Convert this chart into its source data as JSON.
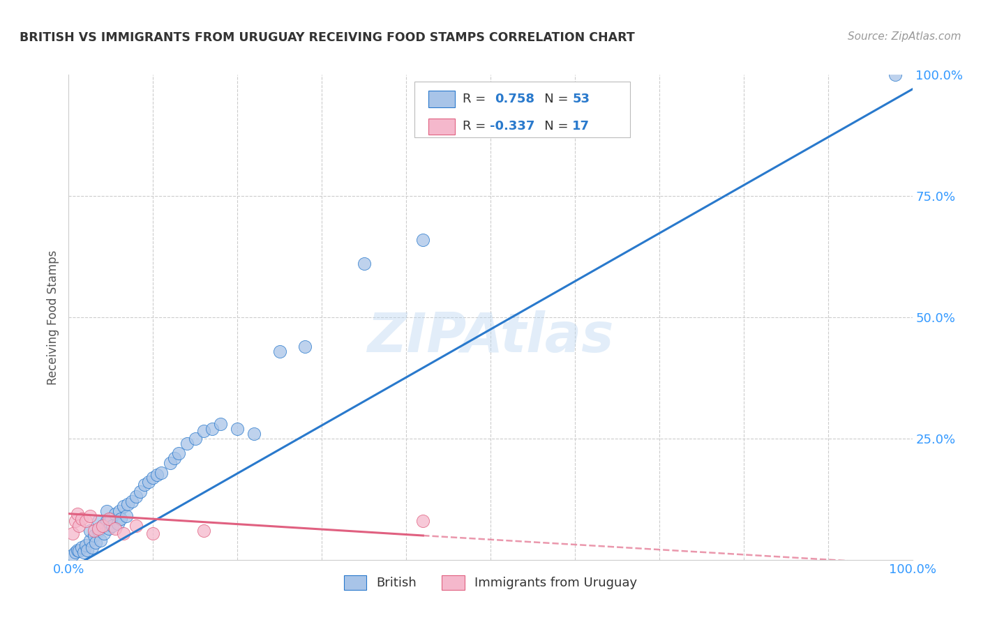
{
  "title": "BRITISH VS IMMIGRANTS FROM URUGUAY RECEIVING FOOD STAMPS CORRELATION CHART",
  "source": "Source: ZipAtlas.com",
  "ylabel": "Receiving Food Stamps",
  "watermark": "ZIPAtlas",
  "blue_R": 0.758,
  "blue_N": 53,
  "pink_R": -0.337,
  "pink_N": 17,
  "blue_color": "#a8c4e8",
  "pink_color": "#f5b8cc",
  "blue_line_color": "#2979cc",
  "pink_line_color": "#e06080",
  "axis_tick_color": "#3399ff",
  "title_color": "#333333",
  "background_color": "#ffffff",
  "grid_color": "#cccccc",
  "xlim": [
    0.0,
    1.0
  ],
  "ylim": [
    0.0,
    1.0
  ],
  "blue_scatter_x": [
    0.005,
    0.008,
    0.01,
    0.012,
    0.015,
    0.018,
    0.02,
    0.022,
    0.025,
    0.025,
    0.028,
    0.03,
    0.032,
    0.035,
    0.035,
    0.038,
    0.04,
    0.042,
    0.045,
    0.045,
    0.048,
    0.05,
    0.052,
    0.055,
    0.058,
    0.06,
    0.062,
    0.065,
    0.068,
    0.07,
    0.075,
    0.08,
    0.085,
    0.09,
    0.095,
    0.1,
    0.105,
    0.11,
    0.12,
    0.125,
    0.13,
    0.14,
    0.15,
    0.16,
    0.17,
    0.18,
    0.2,
    0.22,
    0.25,
    0.28,
    0.35,
    0.42,
    0.98
  ],
  "blue_scatter_y": [
    0.01,
    0.015,
    0.02,
    0.018,
    0.025,
    0.015,
    0.03,
    0.02,
    0.04,
    0.06,
    0.025,
    0.05,
    0.035,
    0.06,
    0.08,
    0.04,
    0.07,
    0.055,
    0.08,
    0.1,
    0.065,
    0.085,
    0.07,
    0.095,
    0.075,
    0.1,
    0.085,
    0.11,
    0.09,
    0.115,
    0.12,
    0.13,
    0.14,
    0.155,
    0.16,
    0.17,
    0.175,
    0.18,
    0.2,
    0.21,
    0.22,
    0.24,
    0.25,
    0.265,
    0.27,
    0.28,
    0.27,
    0.26,
    0.43,
    0.44,
    0.61,
    0.66,
    1.0
  ],
  "pink_scatter_x": [
    0.005,
    0.008,
    0.01,
    0.012,
    0.015,
    0.02,
    0.025,
    0.03,
    0.035,
    0.04,
    0.048,
    0.055,
    0.065,
    0.08,
    0.1,
    0.16,
    0.42
  ],
  "pink_scatter_y": [
    0.055,
    0.08,
    0.095,
    0.07,
    0.085,
    0.08,
    0.09,
    0.06,
    0.065,
    0.07,
    0.085,
    0.065,
    0.055,
    0.07,
    0.055,
    0.06,
    0.08
  ],
  "blue_line": {
    "x0": 0.0,
    "x1": 1.0,
    "y0": -0.02,
    "y1": 0.97
  },
  "pink_solid_line": {
    "x0": 0.0,
    "x1": 0.42,
    "y0": 0.095,
    "y1": 0.05
  },
  "pink_dash_line": {
    "x0": 0.42,
    "x1": 1.0,
    "y0": 0.05,
    "y1": -0.01
  },
  "ytick_positions": [
    0.25,
    0.5,
    0.75,
    1.0
  ],
  "ytick_labels": [
    "25.0%",
    "50.0%",
    "75.0%",
    "100.0%"
  ],
  "xtick_positions": [
    0.0,
    1.0
  ],
  "xtick_labels": [
    "0.0%",
    "100.0%"
  ]
}
